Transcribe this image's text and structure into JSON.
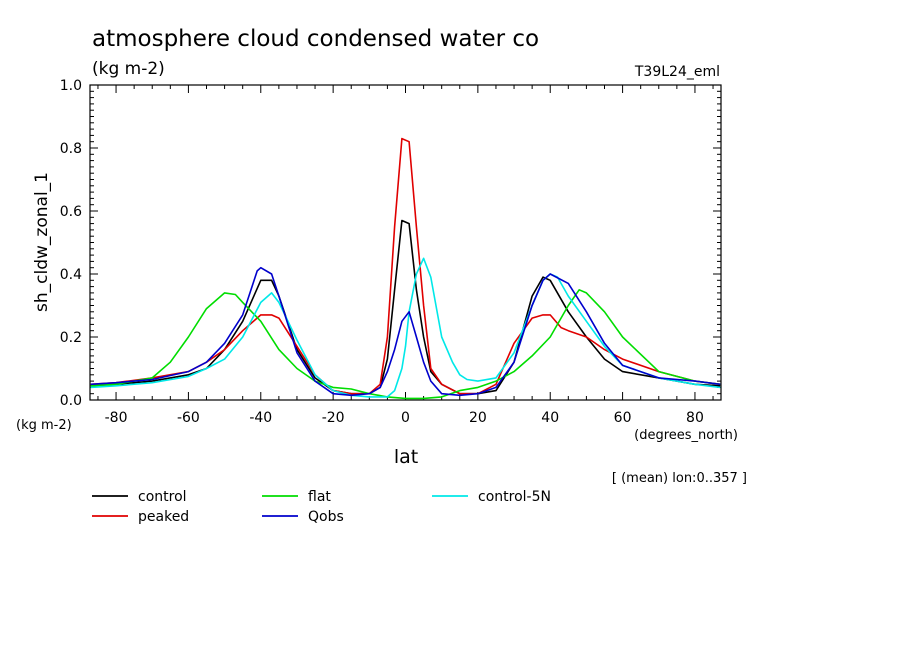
{
  "chart_data": {
    "type": "line",
    "title": "atmosphere cloud condensed water co",
    "subtitle": "(kg m-2)",
    "run_label": "T39L24_eml",
    "xlabel": "lat",
    "x_unit": "(degrees_north)",
    "ylabel": "sh_cldw_zonal_1",
    "y_unit": "(kg m-2)",
    "footnote": "[ (mean) lon:0..357 ]",
    "xlim": [
      -87.2,
      87.2
    ],
    "ylim": [
      0,
      1.0
    ],
    "x_ticks": [
      "-80",
      "-60",
      "-40",
      "-20",
      "0",
      "20",
      "40",
      "60",
      "80"
    ],
    "y_ticks": [
      "0.0",
      "0.2",
      "0.4",
      "0.6",
      "0.8",
      "1.0"
    ],
    "x_tick_values": [
      -80,
      -60,
      -40,
      -20,
      0,
      20,
      40,
      60,
      80
    ],
    "y_tick_values": [
      0,
      0.2,
      0.4,
      0.6,
      0.8,
      1.0
    ],
    "grid": false,
    "legend_position": "bottom",
    "series": [
      {
        "name": "control",
        "color": "#000000",
        "x": [
          -87,
          -80,
          -70,
          -60,
          -55,
          -50,
          -45,
          -40,
          -37,
          -35,
          -30,
          -25,
          -20,
          -15,
          -10,
          -7,
          -5,
          -3,
          -1,
          1,
          3,
          5,
          7,
          10,
          15,
          20,
          25,
          30,
          35,
          38,
          40,
          45,
          50,
          55,
          60,
          70,
          80,
          87
        ],
        "y": [
          0.045,
          0.05,
          0.06,
          0.08,
          0.1,
          0.16,
          0.25,
          0.38,
          0.38,
          0.33,
          0.16,
          0.07,
          0.03,
          0.02,
          0.02,
          0.04,
          0.13,
          0.35,
          0.57,
          0.56,
          0.35,
          0.2,
          0.09,
          0.05,
          0.02,
          0.02,
          0.03,
          0.12,
          0.33,
          0.39,
          0.38,
          0.28,
          0.2,
          0.13,
          0.09,
          0.07,
          0.05,
          0.045
        ]
      },
      {
        "name": "peaked",
        "color": "#e00000",
        "x": [
          -87,
          -80,
          -70,
          -60,
          -55,
          -50,
          -45,
          -40,
          -37,
          -35,
          -30,
          -25,
          -20,
          -15,
          -10,
          -7,
          -5,
          -3,
          -1,
          1,
          3,
          5,
          7,
          10,
          15,
          20,
          25,
          30,
          35,
          38,
          40,
          43,
          45,
          50,
          55,
          60,
          70,
          80,
          87
        ],
        "y": [
          0.05,
          0.055,
          0.07,
          0.09,
          0.12,
          0.16,
          0.22,
          0.27,
          0.27,
          0.26,
          0.17,
          0.08,
          0.03,
          0.02,
          0.02,
          0.05,
          0.2,
          0.55,
          0.83,
          0.82,
          0.55,
          0.3,
          0.1,
          0.05,
          0.02,
          0.02,
          0.05,
          0.18,
          0.26,
          0.27,
          0.27,
          0.23,
          0.22,
          0.2,
          0.16,
          0.13,
          0.09,
          0.06,
          0.05
        ]
      },
      {
        "name": "flat",
        "color": "#00dd00",
        "x": [
          -87,
          -80,
          -70,
          -65,
          -60,
          -55,
          -50,
          -47,
          -45,
          -40,
          -35,
          -30,
          -25,
          -20,
          -15,
          -10,
          -5,
          0,
          5,
          10,
          15,
          20,
          25,
          30,
          35,
          40,
          45,
          48,
          50,
          55,
          60,
          70,
          80,
          87
        ],
        "y": [
          0.045,
          0.05,
          0.07,
          0.12,
          0.2,
          0.29,
          0.34,
          0.335,
          0.31,
          0.25,
          0.16,
          0.1,
          0.06,
          0.04,
          0.035,
          0.02,
          0.01,
          0.005,
          0.005,
          0.01,
          0.03,
          0.04,
          0.06,
          0.09,
          0.14,
          0.2,
          0.3,
          0.35,
          0.34,
          0.28,
          0.2,
          0.09,
          0.06,
          0.05
        ]
      },
      {
        "name": "control-5N",
        "color": "#00e8e8",
        "x": [
          -87,
          -80,
          -70,
          -60,
          -55,
          -50,
          -45,
          -40,
          -37,
          -35,
          -30,
          -25,
          -20,
          -15,
          -10,
          -5,
          -3,
          -1,
          0,
          1,
          3,
          5,
          7,
          10,
          13,
          15,
          17,
          20,
          25,
          30,
          35,
          38,
          40,
          42,
          45,
          50,
          55,
          60,
          70,
          80,
          87
        ],
        "y": [
          0.04,
          0.045,
          0.055,
          0.075,
          0.1,
          0.13,
          0.2,
          0.31,
          0.34,
          0.31,
          0.19,
          0.08,
          0.03,
          0.015,
          0.01,
          0.01,
          0.03,
          0.1,
          0.17,
          0.28,
          0.4,
          0.45,
          0.39,
          0.2,
          0.12,
          0.08,
          0.065,
          0.06,
          0.07,
          0.15,
          0.3,
          0.38,
          0.4,
          0.39,
          0.33,
          0.25,
          0.17,
          0.11,
          0.07,
          0.05,
          0.04
        ]
      },
      {
        "name": "Qobs",
        "color": "#0000cc",
        "x": [
          -87,
          -80,
          -70,
          -60,
          -55,
          -50,
          -45,
          -41,
          -40,
          -37,
          -35,
          -30,
          -25,
          -20,
          -15,
          -10,
          -7,
          -5,
          -3,
          -1,
          1,
          3,
          5,
          7,
          10,
          15,
          20,
          25,
          30,
          35,
          38,
          40,
          45,
          50,
          55,
          60,
          70,
          80,
          87
        ],
        "y": [
          0.05,
          0.055,
          0.065,
          0.09,
          0.12,
          0.18,
          0.27,
          0.41,
          0.42,
          0.4,
          0.33,
          0.15,
          0.06,
          0.02,
          0.015,
          0.02,
          0.04,
          0.09,
          0.16,
          0.25,
          0.28,
          0.2,
          0.12,
          0.06,
          0.02,
          0.015,
          0.02,
          0.04,
          0.12,
          0.3,
          0.38,
          0.4,
          0.37,
          0.28,
          0.18,
          0.11,
          0.07,
          0.06,
          0.05
        ]
      }
    ]
  }
}
